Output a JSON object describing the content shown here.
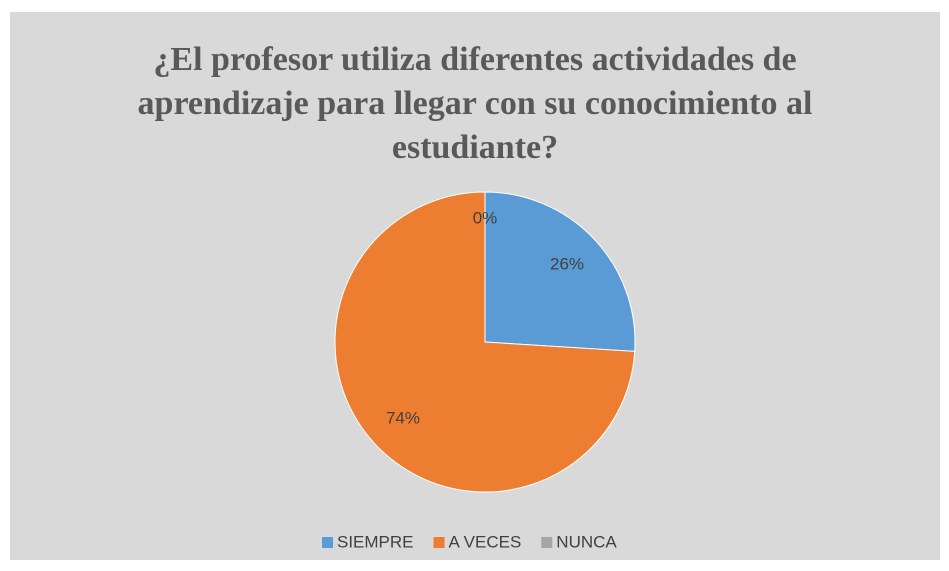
{
  "chart_data": {
    "type": "pie",
    "title": "¿El profesor utiliza diferentes actividades de aprendizaje para llegar con su conocimiento al estudiante?",
    "categories": [
      "SIEMPRE",
      "A VECES",
      "NUNCA"
    ],
    "values": [
      26,
      74,
      0
    ],
    "value_labels": [
      "26%",
      "74%",
      "0%"
    ],
    "colors": [
      "#5b9bd5",
      "#ed7d31",
      "#a5a5a5"
    ],
    "legend": "bottom"
  }
}
